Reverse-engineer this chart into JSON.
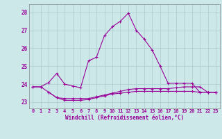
{
  "xlabel": "Windchill (Refroidissement éolien,°C)",
  "bg_color": "#cce8e8",
  "grid_color": "#aacccc",
  "line_color": "#990099",
  "x_ticks": [
    0,
    1,
    2,
    3,
    4,
    5,
    6,
    7,
    8,
    9,
    10,
    11,
    12,
    13,
    14,
    15,
    16,
    17,
    18,
    19,
    20,
    21,
    22,
    23
  ],
  "y_ticks": [
    23,
    24,
    25,
    26,
    27,
    28
  ],
  "xlim": [
    -0.5,
    23.5
  ],
  "ylim": [
    22.65,
    28.45
  ],
  "line1_x": [
    0,
    1,
    2,
    3,
    4,
    5,
    6,
    7,
    8,
    9,
    10,
    11,
    12,
    13,
    14,
    15,
    16,
    17,
    18,
    19,
    20,
    21,
    22,
    23
  ],
  "line1_y": [
    23.85,
    23.85,
    24.1,
    24.6,
    24.0,
    23.9,
    23.8,
    25.3,
    25.5,
    26.7,
    27.2,
    27.5,
    27.95,
    27.0,
    26.5,
    25.9,
    25.0,
    24.05,
    24.05,
    24.05,
    24.05,
    23.55,
    23.55,
    23.55
  ],
  "line2_x": [
    0,
    1,
    2,
    3,
    4,
    5,
    6,
    7,
    8,
    9,
    10,
    11,
    12,
    13,
    14,
    15,
    16,
    17,
    18,
    19,
    20,
    21,
    22,
    23
  ],
  "line2_y": [
    23.85,
    23.85,
    23.55,
    23.25,
    23.2,
    23.2,
    23.2,
    23.2,
    23.3,
    23.4,
    23.5,
    23.6,
    23.7,
    23.75,
    23.75,
    23.75,
    23.75,
    23.75,
    23.8,
    23.85,
    23.85,
    23.85,
    23.55,
    23.55
  ],
  "line3_x": [
    2,
    3,
    4,
    5,
    6,
    7,
    8,
    9,
    10,
    11,
    12,
    13,
    14,
    15,
    16,
    17,
    18,
    19,
    20,
    21,
    22,
    23
  ],
  "line3_y": [
    23.55,
    23.25,
    23.1,
    23.1,
    23.1,
    23.15,
    23.25,
    23.35,
    23.45,
    23.5,
    23.55,
    23.6,
    23.6,
    23.6,
    23.6,
    23.6,
    23.6,
    23.6,
    23.6,
    23.55,
    23.55,
    23.55
  ]
}
